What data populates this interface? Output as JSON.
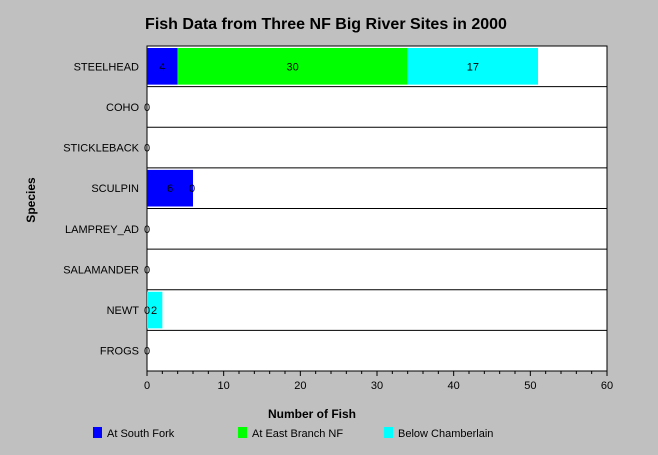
{
  "chart_data": {
    "type": "bar",
    "orientation": "horizontal",
    "stacked": true,
    "title": "Fish Data from Three NF Big River Sites in 2000",
    "xlabel": "Number of Fish",
    "ylabel": "Species",
    "xlim": [
      0,
      60
    ],
    "xticks": [
      "0",
      "10",
      "20",
      "30",
      "40",
      "50",
      "60"
    ],
    "grid": "horizontal-separators",
    "legend_position": "bottom",
    "categories": [
      "STEELHEAD",
      "COHO",
      "STICKLEBACK",
      "SCULPIN",
      "LAMPREY_AD",
      "SALAMANDER",
      "NEWT",
      "FROGS"
    ],
    "series": [
      {
        "name": "At South Fork",
        "color": "#0000ff",
        "values": [
          4,
          0,
          0,
          6,
          0,
          0,
          0,
          0
        ]
      },
      {
        "name": "At East Branch NF",
        "color": "#00ff00",
        "values": [
          30,
          0,
          0,
          0,
          0,
          0,
          0,
          0
        ]
      },
      {
        "name": "Below Chamberlain",
        "color": "#00ffff",
        "values": [
          17,
          0,
          0,
          0,
          0,
          0,
          2,
          0
        ]
      }
    ],
    "data_labels": [
      [
        "4",
        "30",
        "17"
      ],
      [
        "0"
      ],
      [
        "0"
      ],
      [
        "6",
        "0"
      ],
      [
        "0"
      ],
      [
        "0"
      ],
      [
        "0",
        "2"
      ],
      [
        "0"
      ]
    ]
  }
}
